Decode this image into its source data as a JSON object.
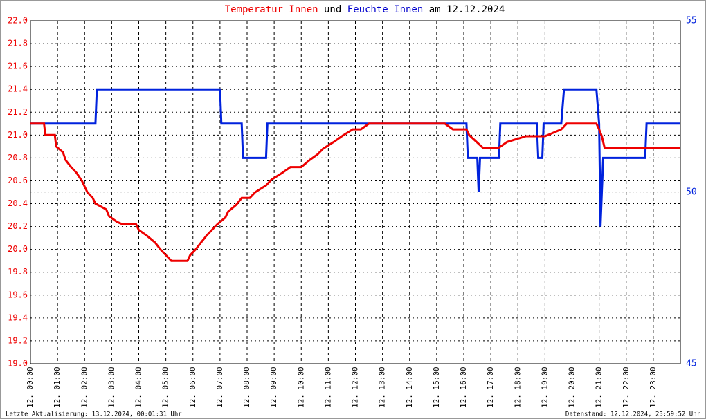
{
  "chart_data": {
    "type": "line",
    "title": [
      "Temperatur Innen",
      "und",
      "Feuchte Innen",
      "am 12.12.2024"
    ],
    "title_colors": [
      "#ee0000",
      "#000000",
      "#0000cc",
      "#000000"
    ],
    "footer_left": "Letzte Aktualisierung: 13.12.2024, 00:01:31 Uhr",
    "footer_right": "Datenstand: 12.12.2024, 23:59:52 Uhr",
    "xlim": [
      0,
      24
    ],
    "xticks": [
      {
        "value": 0,
        "label": "12. 00:00"
      },
      {
        "value": 1,
        "label": "12. 01:00"
      },
      {
        "value": 2,
        "label": "12. 02:00"
      },
      {
        "value": 3,
        "label": "12. 03:00"
      },
      {
        "value": 4,
        "label": "12. 04:00"
      },
      {
        "value": 5,
        "label": "12. 05:00"
      },
      {
        "value": 6,
        "label": "12. 06:00"
      },
      {
        "value": 7,
        "label": "12. 07:00"
      },
      {
        "value": 8,
        "label": "12. 08:00"
      },
      {
        "value": 9,
        "label": "12. 09:00"
      },
      {
        "value": 10,
        "label": "12. 10:00"
      },
      {
        "value": 11,
        "label": "12. 11:00"
      },
      {
        "value": 12,
        "label": "12. 12:00"
      },
      {
        "value": 13,
        "label": "12. 13:00"
      },
      {
        "value": 14,
        "label": "12. 14:00"
      },
      {
        "value": 15,
        "label": "12. 15:00"
      },
      {
        "value": 16,
        "label": "12. 16:00"
      },
      {
        "value": 17,
        "label": "12. 17:00"
      },
      {
        "value": 18,
        "label": "12. 18:00"
      },
      {
        "value": 19,
        "label": "12. 19:00"
      },
      {
        "value": 20,
        "label": "12. 20:00"
      },
      {
        "value": 21,
        "label": "12. 21:00"
      },
      {
        "value": 22,
        "label": "12. 22:00"
      },
      {
        "value": 23,
        "label": "12. 23:00"
      }
    ],
    "ylim": [
      19,
      22
    ],
    "yticks": [
      {
        "value": 19,
        "label": "19.0"
      },
      19.2,
      19.4,
      19.6,
      19.8,
      {
        "value": 20,
        "label": "20.0"
      },
      20.2,
      20.4,
      20.6,
      20.8,
      {
        "value": 21,
        "label": "21.0"
      },
      21.2,
      21.4,
      21.6,
      21.8,
      {
        "value": 22,
        "label": "22.0"
      }
    ],
    "y2lim": [
      45,
      55
    ],
    "y2ticks": [
      45,
      50,
      55
    ],
    "grid": true,
    "series": [
      {
        "name": "Temperatur Innen",
        "color": "#ee0000",
        "x": [
          0,
          0.5,
          0.55,
          0.9,
          0.95,
          1.2,
          1.3,
          1.5,
          1.7,
          1.9,
          2.1,
          2.3,
          2.4,
          2.8,
          2.9,
          3.2,
          3.4,
          3.9,
          4.0,
          4.3,
          4.6,
          4.8,
          5.0,
          5.2,
          5.5,
          5.8,
          5.9,
          6.1,
          6.3,
          6.5,
          6.7,
          6.9,
          7.2,
          7.3,
          7.6,
          7.8,
          8.1,
          8.3,
          8.7,
          8.9,
          9.3,
          9.6,
          10.0,
          10.3,
          10.6,
          10.8,
          11.2,
          11.5,
          11.9,
          12.2,
          12.5,
          15.3,
          15.6,
          16.1,
          16.2,
          16.7,
          17.3,
          17.6,
          18.3,
          19.0,
          19.6,
          19.8,
          20.9,
          21.0,
          21.1,
          21.2,
          22.0,
          22.8,
          23.5,
          23.99
        ],
        "values": [
          21.1,
          21.1,
          21.0,
          21.0,
          20.9,
          20.85,
          20.78,
          20.72,
          20.67,
          20.6,
          20.5,
          20.45,
          20.4,
          20.35,
          20.29,
          20.24,
          20.22,
          20.22,
          20.17,
          20.12,
          20.06,
          20.0,
          19.95,
          19.9,
          19.9,
          19.9,
          19.95,
          20.0,
          20.06,
          20.12,
          20.17,
          20.22,
          20.28,
          20.33,
          20.39,
          20.45,
          20.45,
          20.5,
          20.56,
          20.61,
          20.67,
          20.72,
          20.72,
          20.78,
          20.83,
          20.88,
          20.94,
          20.99,
          21.05,
          21.05,
          21.1,
          21.1,
          21.05,
          21.05,
          21.0,
          20.89,
          20.89,
          20.94,
          20.99,
          20.99,
          21.05,
          21.1,
          21.1,
          21.05,
          20.99,
          20.89,
          20.89,
          20.89,
          20.89,
          20.89
        ]
      },
      {
        "name": "Feuchte Innen",
        "color": "#0022dd",
        "axis": "y2",
        "x": [
          0,
          2.4,
          2.45,
          7.0,
          7.05,
          7.8,
          7.85,
          8.7,
          8.75,
          16.1,
          16.15,
          16.5,
          16.55,
          16.6,
          17.3,
          17.35,
          18.7,
          18.75,
          18.9,
          18.95,
          19.6,
          19.7,
          20.9,
          21.0,
          21.05,
          21.1,
          21.15,
          22.7,
          22.75,
          23.99
        ],
        "values": [
          52,
          52,
          53,
          53,
          52,
          52,
          51,
          51,
          52,
          52,
          51,
          51,
          50,
          51,
          51,
          52,
          52,
          51,
          51,
          52,
          52,
          53,
          53,
          52,
          49,
          50,
          51,
          51,
          52,
          52
        ]
      }
    ]
  }
}
